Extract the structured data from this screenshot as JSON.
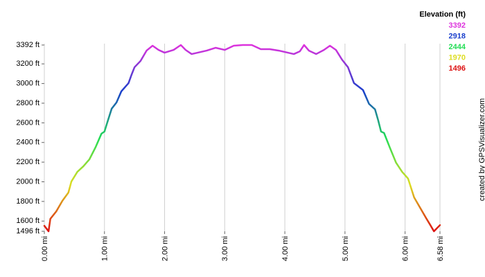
{
  "chart_data": {
    "type": "line",
    "legend_title": "Elevation (ft)",
    "legend": [
      {
        "value": 3392,
        "color": "#dd33dd"
      },
      {
        "value": 2918,
        "color": "#1a3fcc"
      },
      {
        "value": 2444,
        "color": "#22dd55"
      },
      {
        "value": 1970,
        "color": "#dddd22"
      },
      {
        "value": 1496,
        "color": "#dd1111"
      }
    ],
    "credit": "created by GPSVisualizer.com",
    "grid": "x",
    "xlim": [
      0,
      6.58
    ],
    "ylim": [
      1496,
      3392
    ],
    "xticks": [
      {
        "value": 0,
        "label": "0.00 mi"
      },
      {
        "value": 1,
        "label": "1.00 mi"
      },
      {
        "value": 2,
        "label": "2.00 mi"
      },
      {
        "value": 3,
        "label": "3.00 mi"
      },
      {
        "value": 4,
        "label": "4.00 mi"
      },
      {
        "value": 5,
        "label": "5.00 mi"
      },
      {
        "value": 6,
        "label": "6.00 mi"
      },
      {
        "value": 6.58,
        "label": "6.58 mi"
      }
    ],
    "yticks": [
      {
        "value": 3392,
        "label": "3392 ft"
      },
      {
        "value": 3200,
        "label": "3200 ft"
      },
      {
        "value": 3000,
        "label": "3000 ft"
      },
      {
        "value": 2800,
        "label": "2800 ft"
      },
      {
        "value": 2600,
        "label": "2600 ft"
      },
      {
        "value": 2400,
        "label": "2400 ft"
      },
      {
        "value": 2200,
        "label": "2200 ft"
      },
      {
        "value": 2000,
        "label": "2000 ft"
      },
      {
        "value": 1800,
        "label": "1800 ft"
      },
      {
        "value": 1600,
        "label": "1600 ft"
      },
      {
        "value": 1496,
        "label": "1496 ft"
      }
    ],
    "x": [
      0,
      0.07,
      0.1,
      0.2,
      0.3,
      0.4,
      0.45,
      0.55,
      0.65,
      0.75,
      0.85,
      0.95,
      1.0,
      1.05,
      1.12,
      1.2,
      1.28,
      1.4,
      1.45,
      1.5,
      1.6,
      1.7,
      1.8,
      1.9,
      2.0,
      2.15,
      2.27,
      2.35,
      2.45,
      2.6,
      2.7,
      2.85,
      3.0,
      3.15,
      3.3,
      3.45,
      3.6,
      3.75,
      3.9,
      4.05,
      4.15,
      4.25,
      4.32,
      4.4,
      4.52,
      4.65,
      4.75,
      4.85,
      4.95,
      5.05,
      5.15,
      5.3,
      5.4,
      5.5,
      5.55,
      5.6,
      5.65,
      5.75,
      5.85,
      5.95,
      6.05,
      6.15,
      6.25,
      6.35,
      6.42,
      6.48,
      6.58
    ],
    "series": [
      {
        "values": [
          1552,
          1496,
          1623,
          1700,
          1806,
          1890,
          2003,
          2102,
          2158,
          2229,
          2349,
          2490,
          2511,
          2610,
          2744,
          2807,
          2920,
          3004,
          3089,
          3166,
          3230,
          3335,
          3385,
          3342,
          3314,
          3342,
          3392,
          3342,
          3300,
          3321,
          3335,
          3364,
          3342,
          3385,
          3392,
          3392,
          3350,
          3350,
          3335,
          3314,
          3300,
          3328,
          3392,
          3335,
          3300,
          3342,
          3385,
          3342,
          3244,
          3166,
          3004,
          2934,
          2793,
          2737,
          2631,
          2511,
          2497,
          2342,
          2194,
          2102,
          2032,
          1841,
          1736,
          1630,
          1559,
          1496,
          1559
        ]
      }
    ]
  }
}
